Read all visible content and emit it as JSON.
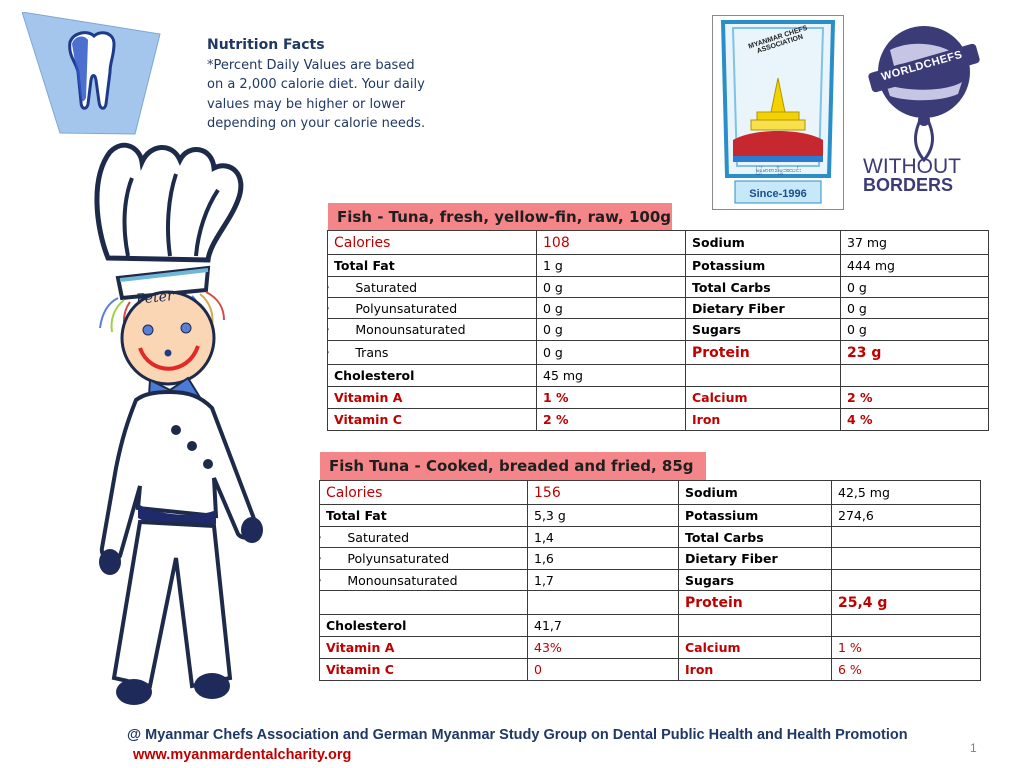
{
  "note": {
    "title": "Nutrition Facts",
    "lines": [
      "*Percent Daily Values are based",
      "on a 2,000 calorie diet. Your daily",
      "values may be higher or lower",
      "depending on your calorie needs."
    ]
  },
  "logos": {
    "mca_name": "MYANMAR CHEFS ASSOCIATION",
    "mca_since": "Since-1996",
    "mca_script": "မြန်မာစားဖိုမှူးအသင်း",
    "wc_badge": "WORLDCHEFS",
    "wc_without": "WITHOUT",
    "wc_borders": "BORDERS"
  },
  "chef": {
    "hat_name": "Peter"
  },
  "table1": {
    "title": "Fish - Tuna, fresh, yellow-fin, raw, 100g",
    "rows": [
      [
        "Calories",
        "108",
        "Sodium",
        "37 mg"
      ],
      [
        "Total Fat",
        "1 g",
        "Potassium",
        "444 mg"
      ],
      [
        "Saturated",
        "0 g",
        "Total Carbs",
        "0 g"
      ],
      [
        "Polyunsaturated",
        "0 g",
        "Dietary Fiber",
        "0 g"
      ],
      [
        "Monounsaturated",
        "0 g",
        "Sugars",
        "0 g"
      ],
      [
        "Trans",
        "0 g",
        "Protein",
        "23 g"
      ],
      [
        "Cholesterol",
        "45 mg",
        "",
        ""
      ],
      [
        "Vitamin A",
        "1 %",
        "Calcium",
        "2 %"
      ],
      [
        "Vitamin C",
        "2 %",
        "Iron",
        "4 %"
      ]
    ]
  },
  "table2": {
    "title": "Fish Tuna - Cooked, breaded and fried, 85g",
    "rows": [
      [
        "Calories",
        "156",
        "Sodium",
        "42,5 mg"
      ],
      [
        "Total Fat",
        "5,3 g",
        "Potassium",
        "274,6"
      ],
      [
        "Saturated",
        "1,4",
        "Total Carbs",
        ""
      ],
      [
        "Polyunsaturated",
        "1,6",
        "Dietary Fiber",
        ""
      ],
      [
        "Monounsaturated",
        "1,7",
        "Sugars",
        ""
      ],
      [
        "",
        "",
        "Protein",
        "25,4 g"
      ],
      [
        "Cholesterol",
        "41,7",
        "",
        ""
      ],
      [
        "Vitamin A",
        "43%",
        "Calcium",
        "1 %"
      ],
      [
        "Vitamin C",
        "0",
        "Iron",
        "6 %"
      ]
    ]
  },
  "footer": {
    "credit": "@ Myanmar Chefs Association and German Myanmar Study Group on Dental Public Health and Health Promotion",
    "url": "www.myanmardentalcharity.org",
    "page_number": "1"
  },
  "colors": {
    "navy": "#1f3864",
    "red": "#c00000",
    "title_bg": "#f4868a",
    "tooth_bg": "#a4c6ec"
  }
}
